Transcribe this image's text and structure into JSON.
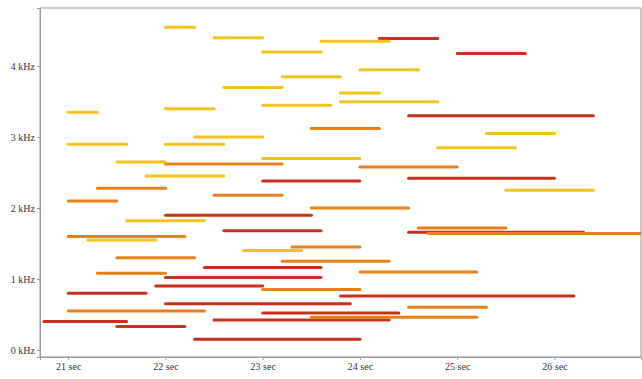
{
  "chart_data": {
    "type": "spectrogram",
    "xlim": [
      20.71,
      26.89
    ],
    "ylim": [
      -0.1,
      4.82
    ],
    "xticks": [
      {
        "value": 21,
        "label": "21 sec"
      },
      {
        "value": 22,
        "label": "22 sec"
      },
      {
        "value": 23,
        "label": "23 sec"
      },
      {
        "value": 24,
        "label": "24 sec"
      },
      {
        "value": 25,
        "label": "25 sec"
      },
      {
        "value": 26,
        "label": "26 sec"
      }
    ],
    "yticks": [
      {
        "value": 0,
        "label": "0 kHz"
      },
      {
        "value": 1,
        "label": "1 kHz"
      },
      {
        "value": 2,
        "label": "2 kHz"
      },
      {
        "value": 3,
        "label": "3 kHz"
      },
      {
        "value": 4,
        "label": "4 kHz"
      }
    ],
    "series": [
      {
        "color": "#c8311b",
        "segments": [
          [
            20.75,
            21.6,
            0.4
          ],
          [
            21.5,
            22.2,
            0.33
          ],
          [
            22.3,
            24.0,
            0.15
          ],
          [
            22.5,
            24.3,
            0.42
          ],
          [
            23.0,
            24.4,
            0.52
          ],
          [
            22.0,
            23.9,
            0.65
          ],
          [
            21.0,
            21.8,
            0.8
          ],
          [
            21.9,
            23.0,
            0.9
          ],
          [
            22.0,
            23.6,
            1.02
          ],
          [
            23.8,
            26.2,
            0.76
          ],
          [
            22.4,
            23.6,
            1.16
          ],
          [
            22.6,
            23.6,
            1.68
          ],
          [
            24.5,
            26.3,
            1.66
          ],
          [
            23.0,
            24.0,
            2.38
          ],
          [
            24.5,
            26.0,
            2.42
          ],
          [
            24.5,
            26.4,
            3.3
          ],
          [
            24.2,
            24.8,
            4.39
          ],
          [
            25.0,
            25.7,
            4.18
          ],
          [
            22.0,
            23.5,
            1.9
          ]
        ]
      },
      {
        "color": "#e8801a",
        "segments": [
          [
            23.5,
            25.2,
            0.46
          ],
          [
            23.0,
            24.0,
            0.85
          ],
          [
            24.5,
            25.3,
            0.6
          ],
          [
            21.3,
            22.0,
            1.08
          ],
          [
            23.2,
            24.3,
            1.25
          ],
          [
            21.5,
            22.3,
            1.3
          ],
          [
            23.3,
            24.0,
            1.45
          ],
          [
            21.0,
            22.2,
            1.6
          ],
          [
            24.6,
            25.5,
            1.72
          ],
          [
            23.5,
            24.5,
            2.0
          ],
          [
            21.3,
            22.0,
            2.28
          ],
          [
            22.5,
            23.2,
            2.18
          ],
          [
            24.0,
            25.0,
            2.58
          ],
          [
            22.0,
            23.2,
            2.62
          ],
          [
            21.0,
            21.5,
            2.1
          ],
          [
            23.5,
            24.2,
            3.12
          ],
          [
            24.7,
            26.9,
            1.64
          ],
          [
            21.0,
            22.4,
            0.55
          ],
          [
            24.0,
            25.2,
            1.1
          ]
        ]
      },
      {
        "color": "#f3c21c",
        "segments": [
          [
            21.2,
            21.9,
            1.55
          ],
          [
            23.0,
            24.0,
            2.7
          ],
          [
            23.0,
            23.7,
            3.45
          ],
          [
            23.8,
            24.2,
            3.62
          ],
          [
            23.8,
            24.8,
            3.5
          ],
          [
            23.0,
            23.6,
            4.2
          ],
          [
            23.6,
            24.3,
            4.35
          ],
          [
            21.0,
            21.3,
            3.35
          ],
          [
            22.0,
            22.5,
            3.4
          ],
          [
            22.0,
            22.6,
            2.9
          ],
          [
            21.6,
            22.4,
            1.82
          ],
          [
            22.8,
            23.4,
            1.4
          ],
          [
            21.8,
            22.6,
            2.45
          ],
          [
            22.3,
            23.0,
            3.0
          ],
          [
            22.6,
            23.2,
            3.7
          ],
          [
            23.2,
            23.8,
            3.85
          ],
          [
            22.5,
            23.0,
            4.4
          ],
          [
            25.3,
            26.0,
            3.05
          ],
          [
            25.5,
            26.4,
            2.25
          ],
          [
            24.8,
            25.6,
            2.85
          ],
          [
            21.0,
            21.6,
            2.9
          ],
          [
            21.5,
            22.0,
            2.65
          ],
          [
            24.0,
            24.6,
            3.95
          ],
          [
            22.0,
            22.3,
            4.55
          ]
        ]
      }
    ]
  }
}
